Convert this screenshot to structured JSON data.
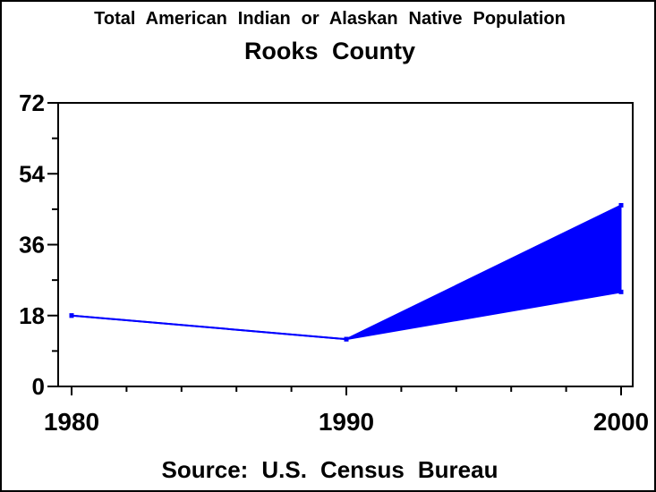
{
  "titles": {
    "line1": "Total American Indian or Alaskan Native Population",
    "line2": "Rooks County"
  },
  "footer": {
    "text": "Source: U.S. Census Bureau"
  },
  "colors": {
    "series": "#0000ff",
    "axis": "#000000",
    "text": "#000000",
    "background": "#ffffff"
  },
  "chart_data": {
    "type": "area",
    "title": "Total American Indian or Alaskan Native Population",
    "subtitle": "Rooks County",
    "source_note": "Source: U.S. Census Bureau",
    "x": [
      1980,
      1990,
      2000
    ],
    "x_tick_labels": [
      "1980",
      "1990",
      "2000"
    ],
    "series": [
      {
        "name": "upper_bound",
        "values": [
          18,
          12,
          46
        ]
      },
      {
        "name": "lower_bound",
        "values": [
          18,
          12,
          24
        ]
      }
    ],
    "band_between_series": true,
    "xlim": [
      1980,
      2000
    ],
    "ylim": [
      0,
      72
    ],
    "y_major_ticks": [
      0,
      18,
      36,
      54,
      72
    ],
    "y_tick_labels": [
      "0",
      "18",
      "36",
      "54",
      "72"
    ],
    "y_minor_tick_step": 9,
    "x_minor_tick_step": 2,
    "grid": false,
    "legend": false,
    "marker": "square"
  }
}
